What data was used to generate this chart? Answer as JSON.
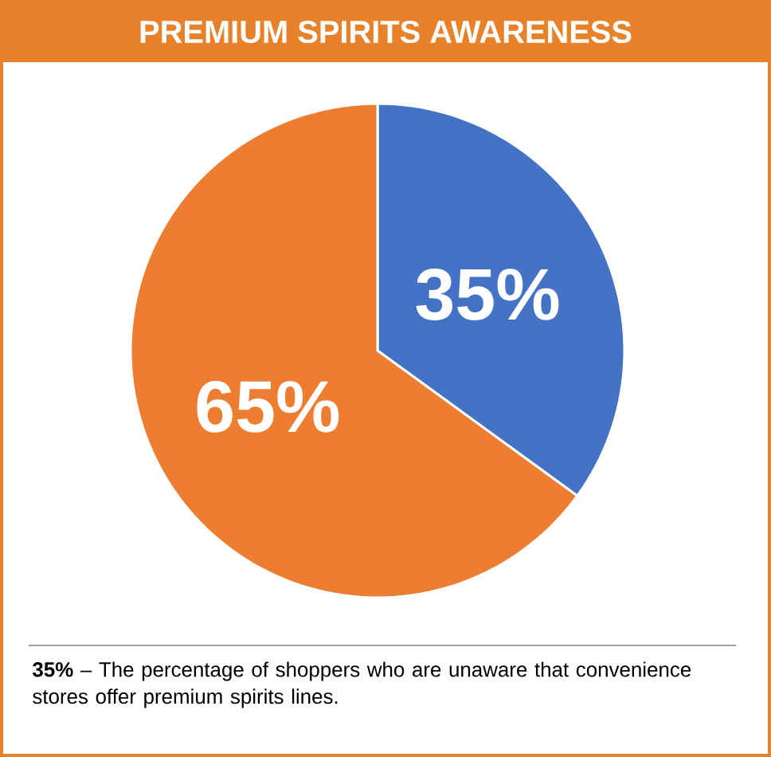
{
  "chart_data": {
    "type": "pie",
    "title": "PREMIUM SPIRITS AWARENESS",
    "values": [
      35,
      65
    ],
    "colors": [
      "#4472c4",
      "#ed7d31"
    ],
    "value_labels": [
      "35%",
      "65%"
    ],
    "annotations": [
      "**35%** – The percentage of shoppers who are unaware that convenience stores offer premium spirits lines."
    ]
  }
}
